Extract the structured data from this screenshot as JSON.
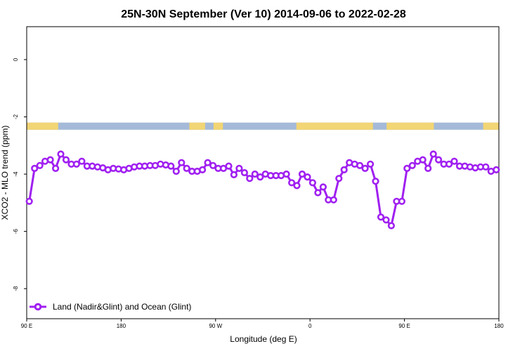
{
  "colors": {
    "series": "#a020f0",
    "land": "#f2d574",
    "ocean": "#a4bad8",
    "axis": "#000000",
    "point_fill": "#ffffff"
  },
  "chart_data": {
    "type": "line",
    "title": "25N-30N September (Ver 10)   2014-09-06 to 2022-02-28",
    "xlabel": "Longitude (deg E)",
    "ylabel": "XCO2 - MLO trend (ppm)",
    "xlim": [
      90,
      540
    ],
    "ylim": [
      -9.05,
      1.15
    ],
    "x_ticks": [
      {
        "value": 90,
        "label": "90 E"
      },
      {
        "value": 180,
        "label": "180"
      },
      {
        "value": 270,
        "label": "90 W"
      },
      {
        "value": 360,
        "label": "0"
      },
      {
        "value": 450,
        "label": "90 E"
      },
      {
        "value": 540,
        "label": "180"
      }
    ],
    "y_ticks": [
      0,
      -2,
      -4,
      -6,
      -8
    ],
    "y_tick_labels": [
      "0",
      "-2",
      "-4",
      "-6",
      "-8"
    ],
    "grid": false,
    "legend_position": "bottom-left",
    "surface_band": {
      "y_range": [
        -2.45,
        -2.2
      ],
      "land_x_ranges": [
        [
          90,
          120
        ],
        [
          245,
          260
        ],
        [
          268,
          277
        ],
        [
          347,
          420
        ],
        [
          433,
          478
        ],
        [
          525,
          540
        ]
      ]
    },
    "series": [
      {
        "name": "Land (Nadir&Glint) and Ocean (Glint)",
        "x": [
          92.5,
          97.5,
          102.5,
          107.5,
          112.5,
          117.5,
          122.5,
          127.5,
          132.5,
          137.5,
          142.5,
          147.5,
          152.5,
          157.5,
          162.5,
          167.5,
          172.5,
          177.5,
          182.5,
          187.5,
          192.5,
          197.5,
          202.5,
          207.5,
          212.5,
          217.5,
          222.5,
          227.5,
          232.5,
          237.5,
          242.5,
          247.5,
          252.5,
          257.5,
          262.5,
          267.5,
          272.5,
          277.5,
          282.5,
          287.5,
          292.5,
          297.5,
          302.5,
          307.5,
          312.5,
          317.5,
          322.5,
          327.5,
          332.5,
          337.5,
          342.5,
          347.5,
          352.5,
          357.5,
          362.5,
          367.5,
          372.5,
          377.5,
          382.5,
          387.5,
          392.5,
          397.5,
          402.5,
          407.5,
          412.5,
          417.5,
          422.5,
          427.5,
          432.5,
          437.5,
          442.5,
          447.5,
          452.5,
          457.5,
          462.5,
          467.5,
          472.5,
          477.5,
          482.5,
          487.5,
          492.5,
          497.5,
          502.5,
          507.5,
          512.5,
          517.5,
          522.5,
          527.5,
          532.5,
          537.5
        ],
        "y": [
          -4.95,
          -3.8,
          -3.7,
          -3.55,
          -3.5,
          -3.8,
          -3.3,
          -3.5,
          -3.65,
          -3.65,
          -3.55,
          -3.72,
          -3.72,
          -3.75,
          -3.78,
          -3.85,
          -3.8,
          -3.82,
          -3.85,
          -3.8,
          -3.75,
          -3.72,
          -3.72,
          -3.7,
          -3.7,
          -3.65,
          -3.68,
          -3.72,
          -3.9,
          -3.6,
          -3.8,
          -3.9,
          -3.9,
          -3.85,
          -3.6,
          -3.7,
          -3.8,
          -3.8,
          -3.72,
          -4.02,
          -3.8,
          -3.95,
          -4.15,
          -4.0,
          -4.1,
          -4.0,
          -4.05,
          -4.05,
          -4.05,
          -4.0,
          -4.3,
          -4.4,
          -4.0,
          -4.1,
          -4.3,
          -4.65,
          -4.45,
          -4.9,
          -4.9,
          -4.15,
          -3.85,
          -3.6,
          -3.65,
          -3.7,
          -3.8,
          -3.65,
          -4.25,
          -5.5,
          -5.6,
          -5.8,
          -4.95,
          -4.95,
          -3.8,
          -3.7,
          -3.55,
          -3.5,
          -3.8,
          -3.3,
          -3.5,
          -3.65,
          -3.65,
          -3.55,
          -3.72,
          -3.72,
          -3.75,
          -3.78,
          -3.75,
          -3.75,
          -3.9,
          -3.85
        ]
      }
    ]
  }
}
